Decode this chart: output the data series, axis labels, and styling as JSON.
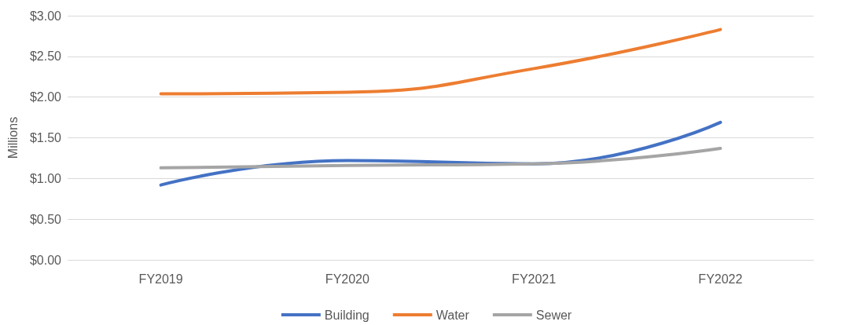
{
  "chart_data": {
    "type": "line",
    "ylabel": "Millions",
    "categories": [
      "FY2019",
      "FY2020",
      "FY2021",
      "FY2022"
    ],
    "series": [
      {
        "name": "Building",
        "color": "#4472c4",
        "values": [
          0.92,
          1.22,
          1.18,
          1.69
        ]
      },
      {
        "name": "Water",
        "color": "#ed7d31",
        "values": [
          2.04,
          2.06,
          2.35,
          2.83
        ]
      },
      {
        "name": "Sewer",
        "color": "#a5a5a5",
        "values": [
          1.13,
          1.16,
          1.18,
          1.37
        ]
      }
    ],
    "ylim": [
      0,
      3
    ],
    "yticks": [
      {
        "value": 0,
        "label": "$0.00"
      },
      {
        "value": 0.5,
        "label": "$0.50"
      },
      {
        "value": 1,
        "label": "$1.00"
      },
      {
        "value": 1.5,
        "label": "$1.50"
      },
      {
        "value": 2,
        "label": "$2.00"
      },
      {
        "value": 2.5,
        "label": "$2.50"
      },
      {
        "value": 3,
        "label": "$3.00"
      }
    ],
    "grid": "y",
    "legend": "bottom",
    "marker": "none",
    "line_style": "solid"
  }
}
